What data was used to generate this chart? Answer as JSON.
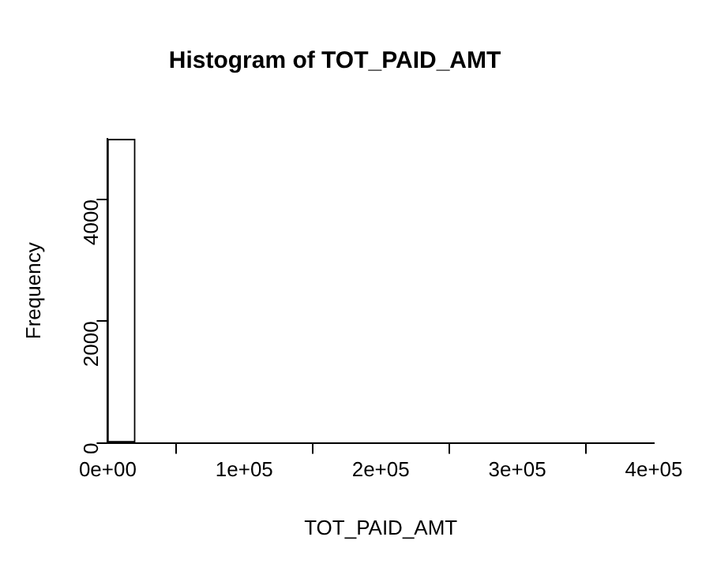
{
  "chart_data": {
    "type": "histogram",
    "title": "Histogram of TOT_PAID_AMT",
    "xlabel": "TOT_PAID_AMT",
    "ylabel": "Frequency",
    "bins": [
      0,
      20000,
      40000,
      60000,
      80000,
      100000,
      120000,
      140000,
      160000,
      180000,
      200000,
      220000,
      240000,
      260000,
      280000,
      300000,
      320000,
      340000,
      360000,
      380000,
      400000
    ],
    "values": [
      4990,
      0,
      0,
      0,
      0,
      0,
      0,
      0,
      0,
      0,
      0,
      0,
      0,
      0,
      0,
      0,
      0,
      0,
      0,
      0
    ],
    "color": "#ffffff",
    "xlim": [
      0,
      400000
    ],
    "xticks": [
      {
        "value": 0,
        "label": "0e+00"
      },
      {
        "value": 100000,
        "label": "1e+05"
      },
      {
        "value": 200000,
        "label": "2e+05"
      },
      {
        "value": 300000,
        "label": "3e+05"
      },
      {
        "value": 400000,
        "label": "4e+05"
      }
    ],
    "ylim": [
      0,
      5000
    ],
    "yticks": [
      0,
      2000,
      4000
    ],
    "grid": false,
    "legend": false
  }
}
